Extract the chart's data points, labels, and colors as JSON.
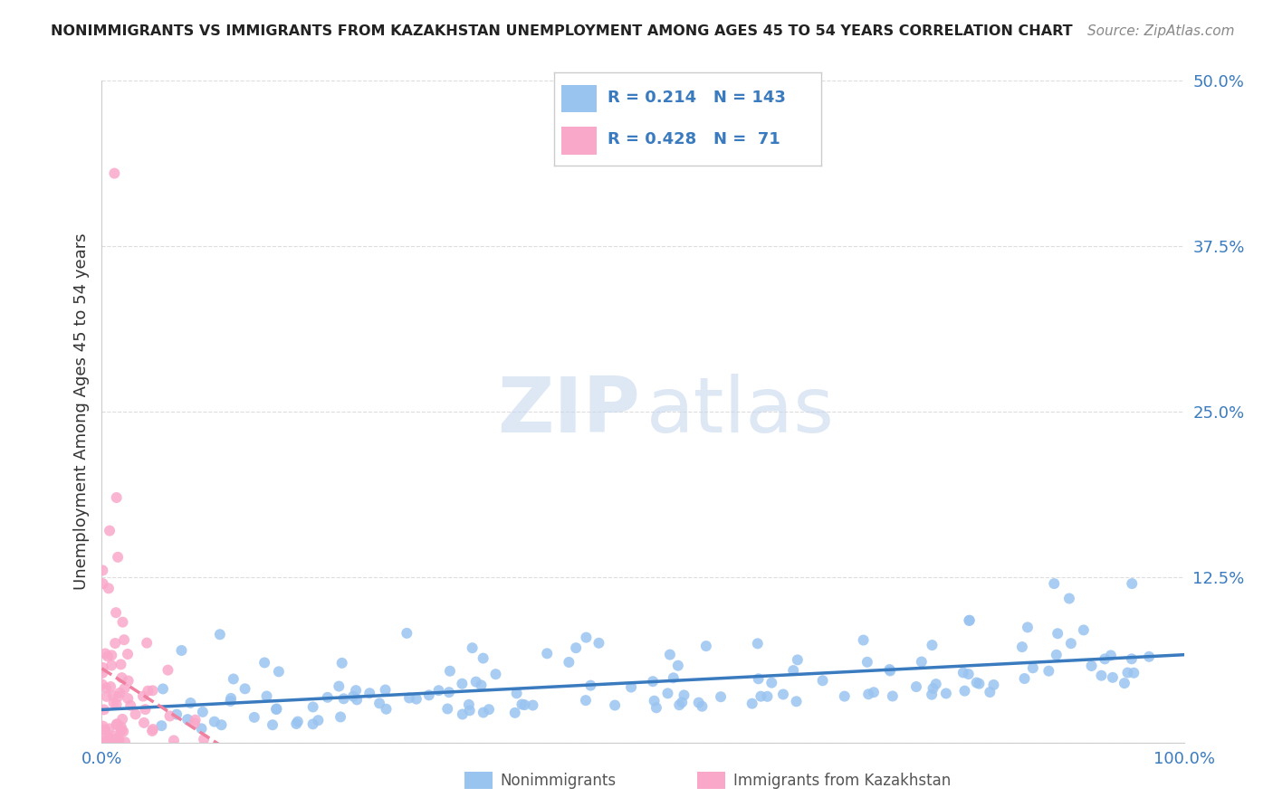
{
  "title": "NONIMMIGRANTS VS IMMIGRANTS FROM KAZAKHSTAN UNEMPLOYMENT AMONG AGES 45 TO 54 YEARS CORRELATION CHART",
  "source": "Source: ZipAtlas.com",
  "ylabel": "Unemployment Among Ages 45 to 54 years",
  "xlim": [
    0.0,
    1.0
  ],
  "ylim": [
    0.0,
    0.5
  ],
  "yticks": [
    0.0,
    0.125,
    0.25,
    0.375,
    0.5
  ],
  "ytick_labels": [
    "",
    "12.5%",
    "25.0%",
    "37.5%",
    "50.0%"
  ],
  "xticks": [
    0.0,
    0.25,
    0.5,
    0.75,
    1.0
  ],
  "xtick_labels": [
    "0.0%",
    "",
    "",
    "",
    "100.0%"
  ],
  "nonimm_R": 0.214,
  "nonimm_N": 143,
  "imm_R": 0.428,
  "imm_N": 71,
  "nonimm_color": "#99c4f0",
  "imm_color": "#f9a8c9",
  "nonimm_line_color": "#3a7bbf",
  "imm_line_color": "#f080a0",
  "watermark_zip": "ZIP",
  "watermark_atlas": "atlas",
  "legend_label_nonimm": "Nonimmigrants",
  "legend_label_imm": "Immigrants from Kazakhstan",
  "background_color": "#ffffff",
  "grid_color": "#dddddd"
}
